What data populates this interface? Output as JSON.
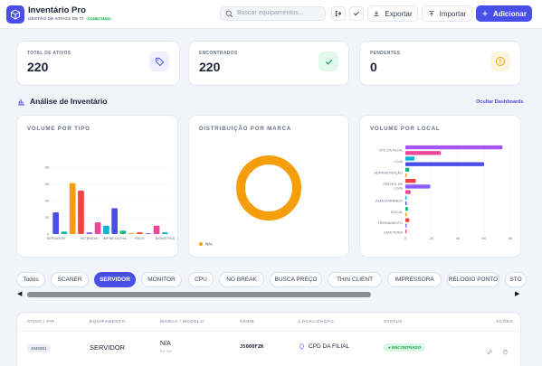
{
  "header": {
    "title": "Inventário Pro",
    "subtitle": "GESTÃO DE ATIVOS DE TI",
    "badge": "CONECTADO",
    "search_placeholder": "Buscar equipamentos...",
    "export_label": "Exportar",
    "import_label": "Importar",
    "add_label": "Adicionar"
  },
  "stats": [
    {
      "label": "TOTAL DE ATIVOS",
      "value": "220",
      "icon": "tag-icon",
      "color": "#4a4ee8"
    },
    {
      "label": "ENCONTRADOS",
      "value": "220",
      "icon": "check-icon",
      "color": "#16a34a"
    },
    {
      "label": "PENDENTES",
      "value": "0",
      "icon": "alert-icon",
      "color": "#f59e0b"
    }
  ],
  "section": {
    "title": "Análise de Inventário",
    "toggle_label": "Ocultar Dashboards"
  },
  "charts": {
    "tipo_title": "VOLUME POR TIPO",
    "marca_title": "DISTRIBUIÇÃO POR MARCA",
    "local_title": "VOLUME POR LOCAL"
  },
  "chart_data": [
    {
      "type": "bar",
      "title": "VOLUME POR TIPO",
      "ylim": [
        0,
        80
      ],
      "yticks": [
        0,
        20,
        40,
        60,
        80
      ],
      "tick_labels": [
        "SERVIDOR",
        "NO BREAK",
        "IMPRESSORA",
        "RACK",
        "BIOMETRIA"
      ],
      "bars": [
        {
          "value": 26,
          "color": "#4a4ee8"
        },
        {
          "value": 3,
          "color": "#14b8a6"
        },
        {
          "value": 61,
          "color": "#f59e0b"
        },
        {
          "value": 52,
          "color": "#ef4444"
        },
        {
          "value": 2,
          "color": "#8b5cf6"
        },
        {
          "value": 14,
          "color": "#ec4899"
        },
        {
          "value": 10,
          "color": "#06b6d4"
        },
        {
          "value": 31,
          "color": "#4a4ee8"
        },
        {
          "value": 4,
          "color": "#10b981"
        },
        {
          "value": 1,
          "color": "#f59e0b"
        },
        {
          "value": 2,
          "color": "#ef4444"
        },
        {
          "value": 1,
          "color": "#8b5cf6"
        },
        {
          "value": 10,
          "color": "#ec4899"
        },
        {
          "value": 2,
          "color": "#06b6d4"
        }
      ]
    },
    {
      "type": "pie",
      "title": "DISTRIBUIÇÃO POR MARCA",
      "legend": "bottom-left",
      "slices": [
        {
          "label": "N/A",
          "value": 220,
          "color": "#f59e0b"
        }
      ]
    },
    {
      "type": "bar",
      "orientation": "horizontal",
      "title": "VOLUME POR LOCAL",
      "xlim": [
        0,
        80
      ],
      "xticks": [
        0,
        20,
        40,
        60,
        80
      ],
      "tick_labels": [
        "CPD DA FILIAL",
        "LOJA",
        "ADMINISTRAÇÃO",
        "FRENTE DE LOJA",
        "ALMOXARIFADO",
        "FISCAL",
        "TREINAMENTO",
        "CAFETERIA"
      ],
      "bars": [
        {
          "value": 74,
          "color": "#a855f7"
        },
        {
          "value": 27,
          "color": "#ec4899"
        },
        {
          "value": 7,
          "color": "#06b6d4"
        },
        {
          "value": 60,
          "color": "#4a4ee8"
        },
        {
          "value": 3,
          "color": "#10b981"
        },
        {
          "value": 1,
          "color": "#f59e0b"
        },
        {
          "value": 8,
          "color": "#ef4444"
        },
        {
          "value": 19,
          "color": "#8b5cf6"
        },
        {
          "value": 4,
          "color": "#ec4899"
        },
        {
          "value": 1,
          "color": "#06b6d4"
        },
        {
          "value": 1,
          "color": "#4a4ee8"
        },
        {
          "value": 2,
          "color": "#10b981"
        },
        {
          "value": 1,
          "color": "#f59e0b"
        },
        {
          "value": 3,
          "color": "#ef4444"
        },
        {
          "value": 1,
          "color": "#8b5cf6"
        },
        {
          "value": 1,
          "color": "#ec4899"
        }
      ]
    }
  ],
  "filters": {
    "items": [
      "Todos",
      "SCANER",
      "SERVIDOR",
      "MONITOR",
      "CPU",
      "NO BREAK",
      "BUSCA PREÇO",
      "THIN CLIENT",
      "IMPRESSORA",
      "RELOGIO PONTO",
      "STO"
    ],
    "active": "SERVIDOR"
  },
  "table": {
    "headers": [
      "ATIVO / PIP",
      "EQUIPAMENTO",
      "MARCA / MODELO",
      "SÉRIE",
      "LOCALIZAÇÃO",
      "STATUS",
      "AÇÕES"
    ],
    "row": {
      "ativo": "4846951",
      "equipamento": "SERVIDOR",
      "marca": "N/A",
      "modelo": "EX 320",
      "serie": "J5000FZK",
      "local": "CPD DA FILIAL",
      "status": "ENCONTRADO"
    }
  }
}
